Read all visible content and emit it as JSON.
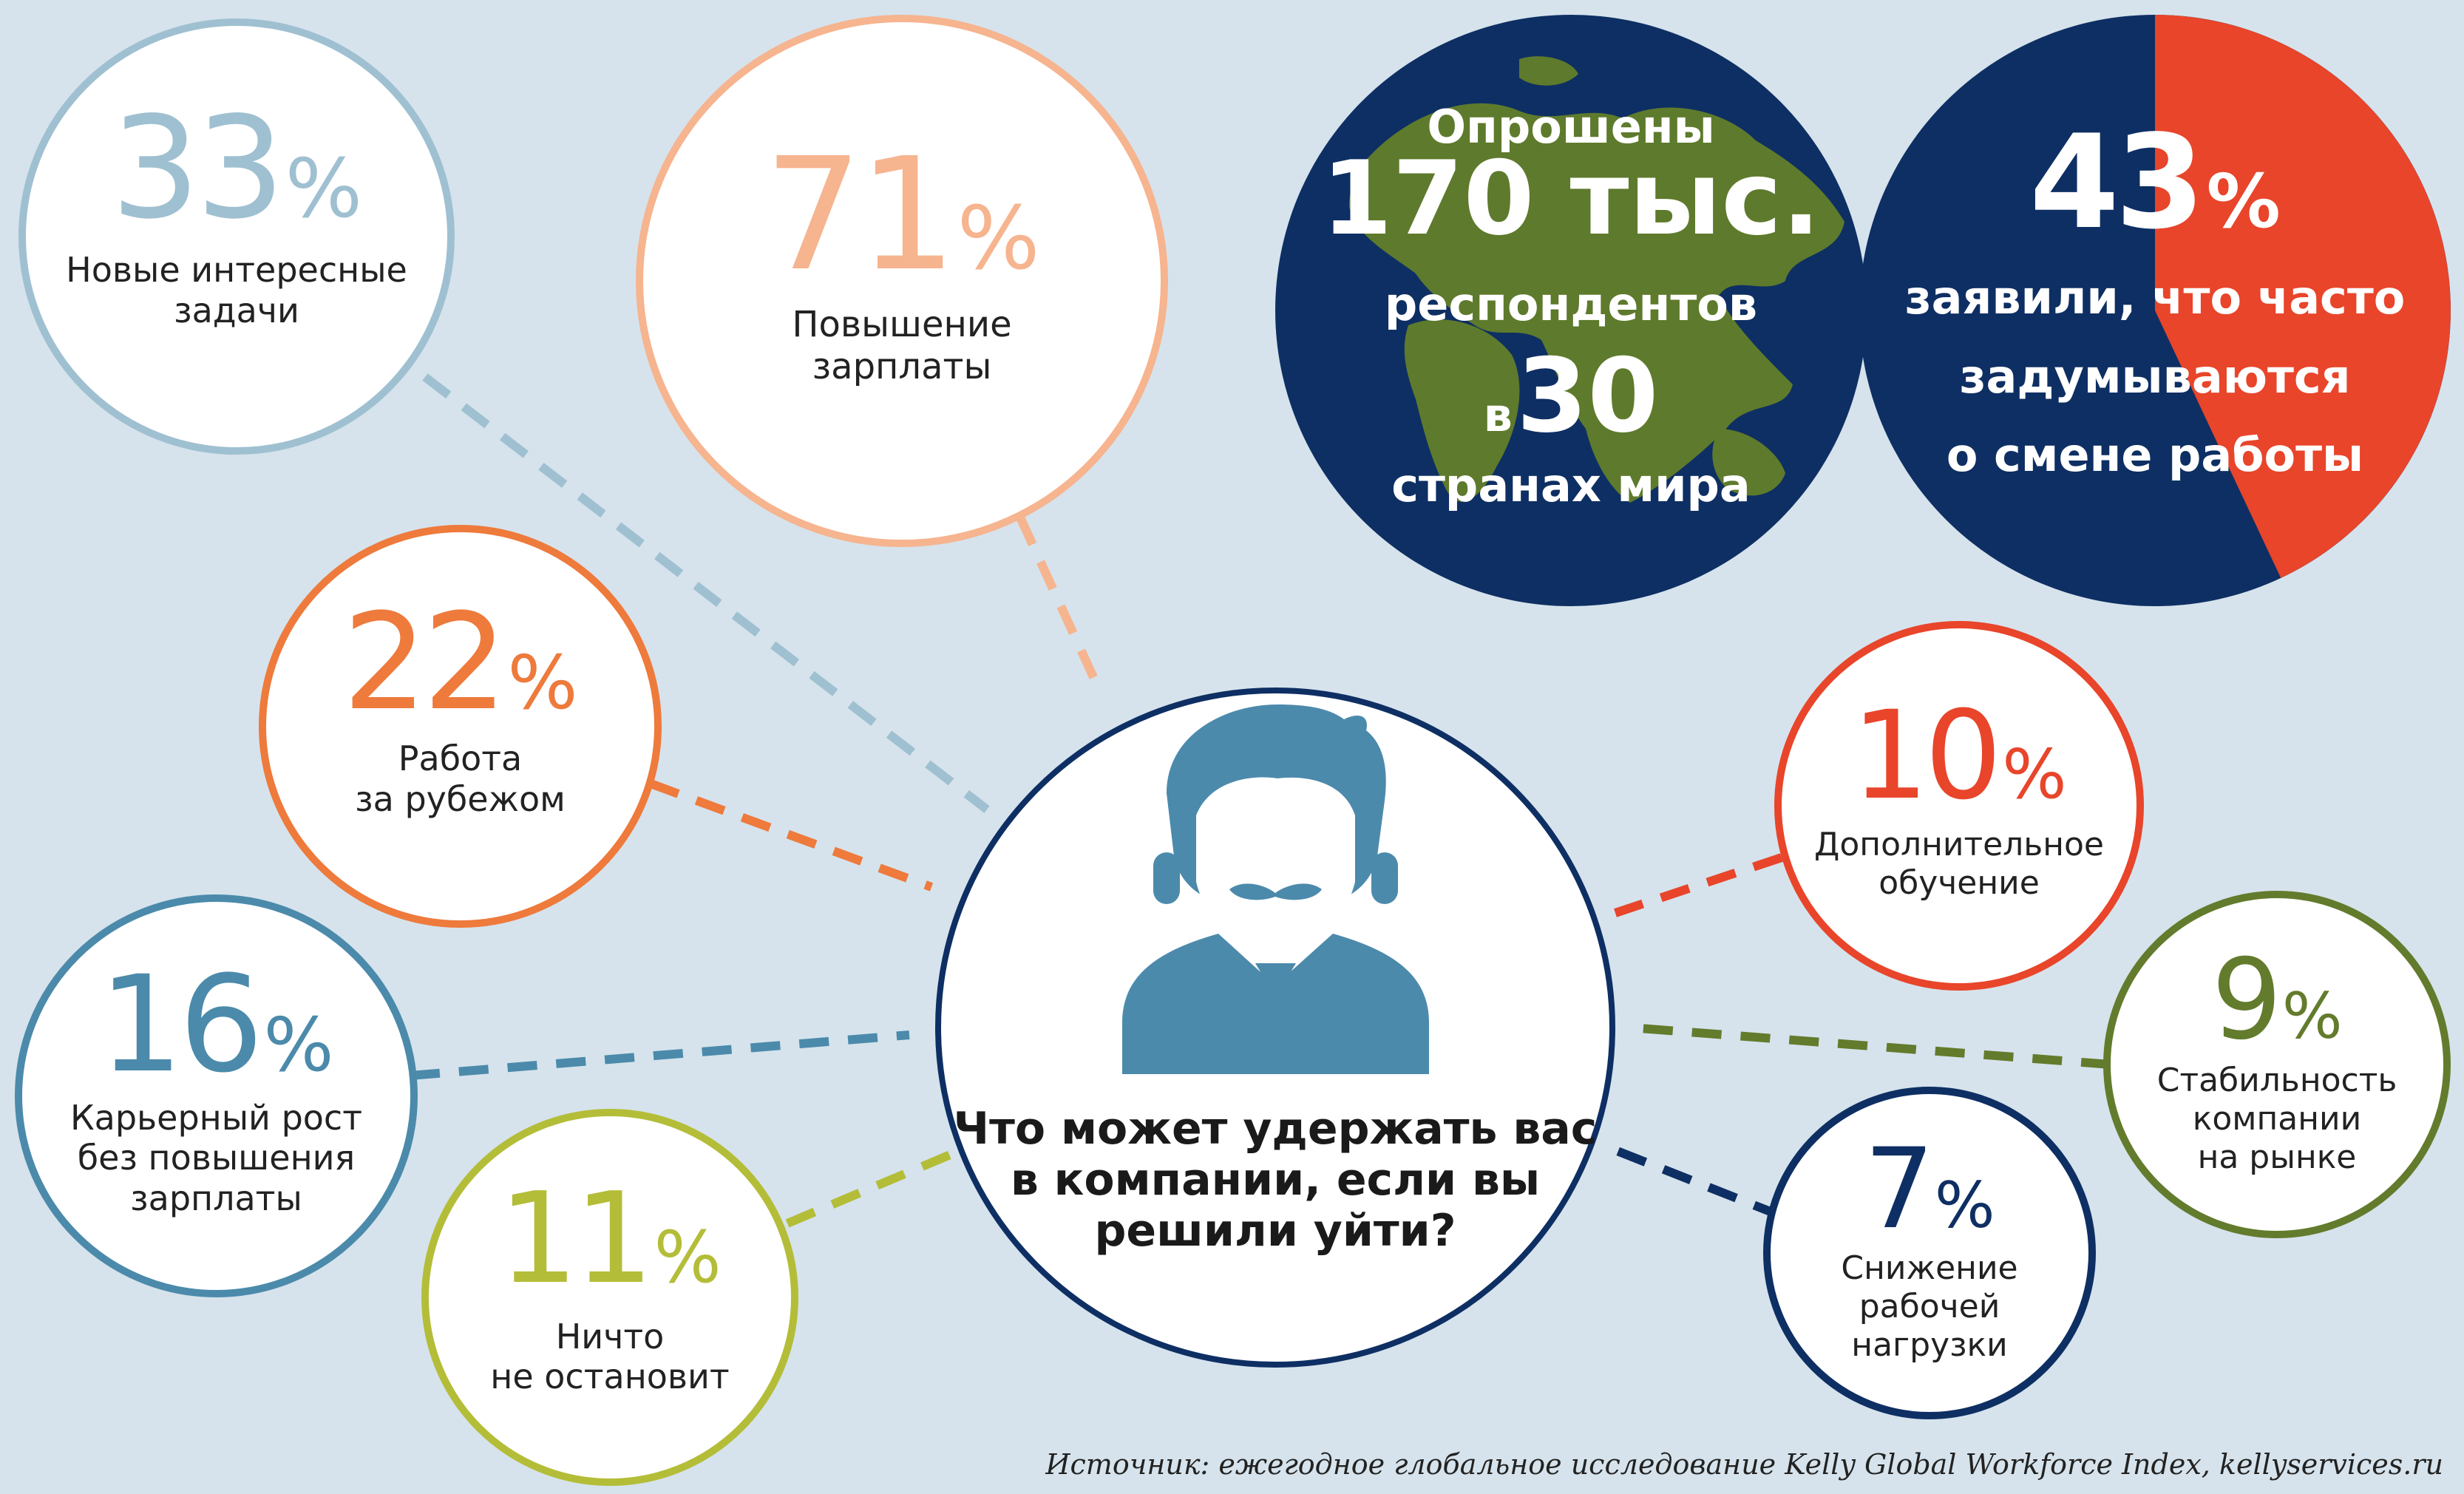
{
  "chart_data": {
    "type": "bubble",
    "question": "Что может удержать вас\nв компании, если вы\nрешили уйти?",
    "unit": "%",
    "items": [
      {
        "key": "tasks",
        "value": 33,
        "label": "Новые интересные\nзадачи",
        "color": "#9fc0d1"
      },
      {
        "key": "salary",
        "value": 71,
        "label": "Повышение\nзарплаты",
        "color": "#f6b48f"
      },
      {
        "key": "abroad",
        "value": 22,
        "label": "Работа\nза рубежом",
        "color": "#ee7a3c"
      },
      {
        "key": "career",
        "value": 16,
        "label": "Карьерный рост\nбез повышения\nзарплаты",
        "color": "#4b8aaa"
      },
      {
        "key": "nothing",
        "value": 11,
        "label": "Ничто\nне остановит",
        "color": "#b4bd38"
      },
      {
        "key": "training",
        "value": 10,
        "label": "Дополнительное\nобучение",
        "color": "#e8452b"
      },
      {
        "key": "stability",
        "value": 9,
        "label": "Стабильность\nкомпании\nна рынке",
        "color": "#637b2c"
      },
      {
        "key": "workload",
        "value": 7,
        "label": "Снижение\nрабочей\nнагрузки",
        "color": "#0e2f63"
      }
    ],
    "survey": {
      "line1": "Опрошены",
      "count": "170 тыс.",
      "line3": "респондентов",
      "prefix_in": "в",
      "countries": "30",
      "line5": "странах мира"
    },
    "pie": {
      "value": 43,
      "unit": "%",
      "text": "заявили, что часто\nзадумываются\nо смене работы",
      "colors": {
        "highlight": "#e8452b",
        "rest": "#0e2f63"
      }
    },
    "source": "Источник: ежегодное глобальное исследование Kelly Global Workforce Index, kellyservices.ru"
  },
  "colors": {
    "background": "#d6e3ec",
    "navy": "#0e2f63",
    "land": "#5e7a2c",
    "person": "#4c8aac"
  },
  "icons": {
    "person": "businessman-icon",
    "globe": "world-map-icon"
  }
}
